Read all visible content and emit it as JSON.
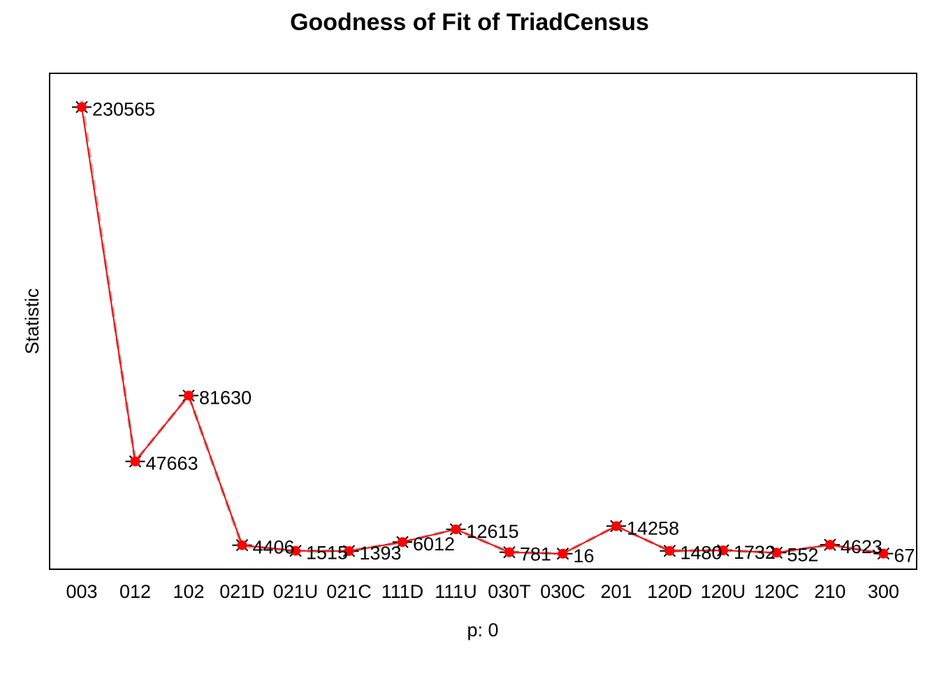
{
  "chart_data": {
    "type": "line",
    "title": "Goodness of Fit of TriadCensus",
    "xlabel": "p: 0",
    "ylabel": "Statistic",
    "categories": [
      "003",
      "012",
      "102",
      "021D",
      "021U",
      "021C",
      "111D",
      "111U",
      "030T",
      "030C",
      "201",
      "120D",
      "120U",
      "120C",
      "210",
      "300"
    ],
    "series": [
      {
        "values": [
          230565,
          47663,
          81630,
          4406,
          1515,
          1393,
          6012,
          12615,
          781,
          16,
          14258,
          1480,
          1732,
          552,
          4623,
          67
        ],
        "color": "#ff0000",
        "style": "solid",
        "marker": "filled-circle"
      },
      {
        "values": [
          234000,
          47663,
          81630,
          4000,
          1300,
          1393,
          6012,
          12615,
          781,
          16,
          14258,
          1480,
          1732,
          552,
          4623,
          67
        ],
        "color": "#bebebe",
        "style": "dashed"
      }
    ],
    "data_labels": [
      "230565",
      "47663",
      "81630",
      "4406",
      "1515",
      "1393",
      "6012",
      "12615",
      "781",
      "16",
      "14258",
      "1480",
      "1732",
      "552",
      "4623",
      "67"
    ],
    "ylim": [
      -8000,
      248000
    ],
    "grid": false,
    "legend": "none",
    "colors": {
      "observed": "#ff0000",
      "simulated": "#bebebe",
      "markers": "#000000"
    }
  }
}
